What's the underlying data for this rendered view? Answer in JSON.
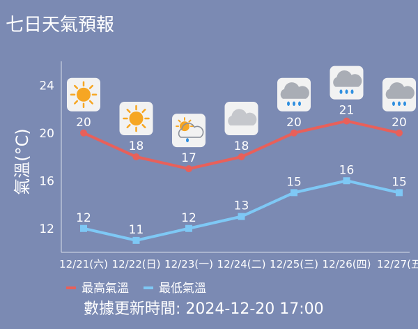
{
  "chart_data": {
    "type": "line",
    "title": "七日天氣預報",
    "ylabel": "氣溫(°C)",
    "xlabel": "",
    "ylim": [
      10,
      26
    ],
    "yticks": [
      12,
      16,
      20,
      24
    ],
    "grid": false,
    "legend_position": "bottom-left",
    "categories": [
      "12/21(六)",
      "12/22(日)",
      "12/23(一)",
      "12/24(二)",
      "12/25(三)",
      "12/26(四)",
      "12/27(五"
    ],
    "series": [
      {
        "name": "最高氣溫",
        "values": [
          20,
          18,
          17,
          18,
          20,
          21,
          20
        ],
        "color": "#e8605a",
        "marker": "circle"
      },
      {
        "name": "最低氣溫",
        "values": [
          12,
          11,
          12,
          13,
          15,
          16,
          15
        ],
        "color": "#7ec8f5",
        "marker": "square"
      }
    ],
    "weather_icons": [
      "sun-icon",
      "sun-icon",
      "partly-cloudy-rain-icon",
      "cloud-icon",
      "cloud-rain-icon",
      "cloud-rain-icon",
      "cloud-rain-icon"
    ]
  },
  "footer": {
    "updated_text": "數據更新時間: 2024-12-20 17:00"
  },
  "colors": {
    "background": "#7b8ab3",
    "axis": "#d9dde8",
    "icon_tile": "#f2f2f2"
  }
}
